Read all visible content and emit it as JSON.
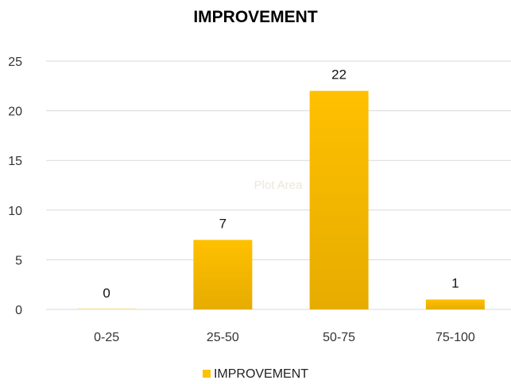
{
  "chart_data": {
    "type": "bar",
    "title": "IMPROVEMENT",
    "categories": [
      "0-25",
      "25-50",
      "50-75",
      "75-100"
    ],
    "series": [
      {
        "name": "IMPROVEMENT",
        "values": [
          0,
          7,
          22,
          1
        ]
      }
    ],
    "data_labels": [
      "0",
      "7",
      "22",
      "1"
    ],
    "yticks": [
      "0",
      "5",
      "10",
      "15",
      "20",
      "25"
    ],
    "ylim": [
      0,
      25
    ],
    "grid": true,
    "legend_position": "bottom",
    "bar_color": "#FFC000",
    "bar_color_dark": "#E6AC00",
    "grid_color": "#d9d9d9",
    "watermark": "Plot Area"
  }
}
